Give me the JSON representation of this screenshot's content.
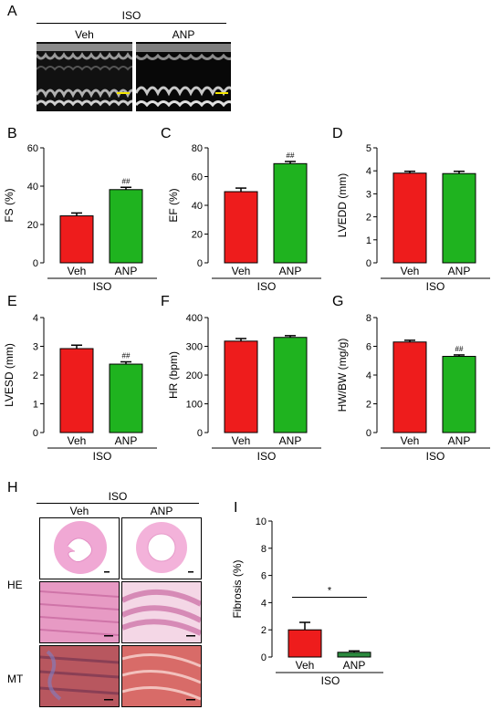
{
  "panels": {
    "A": "A",
    "B": "B",
    "C": "C",
    "D": "D",
    "E": "E",
    "F": "F",
    "G": "G",
    "H": "H",
    "I": "I"
  },
  "echo": {
    "group": "ISO",
    "veh": "Veh",
    "anp": "ANP"
  },
  "histo": {
    "group": "ISO",
    "veh": "Veh",
    "anp": "ANP",
    "row1": "HE",
    "row2": "MT"
  },
  "colors": {
    "veh": "#ee1c1c",
    "anp": "#1fb31f",
    "anp_fibrosis": "#2b8a3e",
    "scale_bar_echo": "#f5e600"
  },
  "chart_data": [
    {
      "id": "B",
      "type": "bar",
      "categories": [
        "Veh",
        "ANP"
      ],
      "values": [
        24.5,
        38.2
      ],
      "errors": [
        1.5,
        1.2
      ],
      "ylabel": "FS (%)",
      "ylim": [
        0,
        60
      ],
      "yticks": [
        0,
        20,
        40,
        60
      ],
      "group_label": "ISO",
      "annotations": [
        "",
        "##"
      ]
    },
    {
      "id": "C",
      "type": "bar",
      "categories": [
        "Veh",
        "ANP"
      ],
      "values": [
        49.5,
        69
      ],
      "errors": [
        2.5,
        1.5
      ],
      "ylabel": "EF (%)",
      "ylim": [
        0,
        80
      ],
      "yticks": [
        0,
        20,
        40,
        60,
        80
      ],
      "group_label": "ISO",
      "annotations": [
        "",
        "##"
      ]
    },
    {
      "id": "D",
      "type": "bar",
      "categories": [
        "Veh",
        "ANP"
      ],
      "values": [
        3.9,
        3.88
      ],
      "errors": [
        0.08,
        0.1
      ],
      "ylabel": "LVEDD (mm)",
      "ylim": [
        0,
        5
      ],
      "yticks": [
        0,
        1,
        2,
        3,
        4,
        5
      ],
      "group_label": "ISO",
      "annotations": [
        "",
        ""
      ]
    },
    {
      "id": "E",
      "type": "bar",
      "categories": [
        "Veh",
        "ANP"
      ],
      "values": [
        2.92,
        2.38
      ],
      "errors": [
        0.12,
        0.08
      ],
      "ylabel": "LVESD (mm)",
      "ylim": [
        0,
        4
      ],
      "yticks": [
        0,
        1,
        2,
        3,
        4
      ],
      "group_label": "ISO",
      "annotations": [
        "",
        "##"
      ]
    },
    {
      "id": "F",
      "type": "bar",
      "categories": [
        "Veh",
        "ANP"
      ],
      "values": [
        318,
        331
      ],
      "errors": [
        9,
        6
      ],
      "ylabel": "HR (bpm)",
      "ylim": [
        0,
        400
      ],
      "yticks": [
        0,
        100,
        200,
        300,
        400
      ],
      "group_label": "ISO",
      "annotations": [
        "",
        ""
      ]
    },
    {
      "id": "G",
      "type": "bar",
      "categories": [
        "Veh",
        "ANP"
      ],
      "values": [
        6.3,
        5.3
      ],
      "errors": [
        0.12,
        0.1
      ],
      "ylabel": "HW/BW (mg/g)",
      "ylim": [
        0,
        8
      ],
      "yticks": [
        0,
        2,
        4,
        6,
        8
      ],
      "group_label": "ISO",
      "annotations": [
        "",
        "##"
      ]
    },
    {
      "id": "I",
      "type": "bar",
      "categories": [
        "Veh",
        "ANP"
      ],
      "values": [
        2.0,
        0.35
      ],
      "errors": [
        0.55,
        0.1
      ],
      "ylabel": "Fibrosis (%)",
      "ylim": [
        0,
        10
      ],
      "yticks": [
        0,
        2,
        4,
        6,
        8,
        10
      ],
      "group_label": "ISO",
      "annotations": [
        "*"
      ]
    }
  ]
}
